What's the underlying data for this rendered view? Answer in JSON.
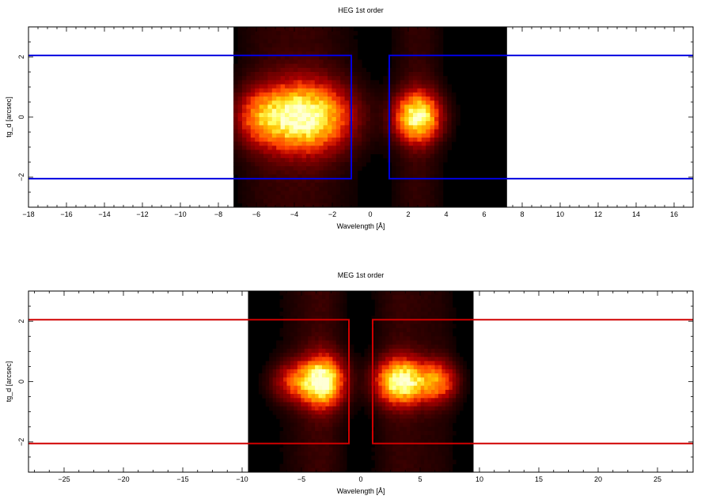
{
  "chart_data": [
    {
      "type": "heatmap",
      "title": "HEG 1st order",
      "xlabel": "Wavelength [Å]",
      "ylabel": "tg_d [arcsec]",
      "xlim": [
        -18,
        17
      ],
      "ylim": [
        -3,
        3
      ],
      "xticks": [
        -18,
        -16,
        -14,
        -12,
        -10,
        -8,
        -6,
        -4,
        -2,
        0,
        2,
        4,
        6,
        8,
        10,
        12,
        14,
        16
      ],
      "yticks": [
        -2,
        0,
        2
      ],
      "image_x_range": [
        -7.2,
        7.2
      ],
      "blobs": [
        {
          "x": -3.5,
          "y": 0,
          "sx": 1.6,
          "sy": 0.75,
          "amp": 1.0
        },
        {
          "x": -5.8,
          "y": 0,
          "sx": 0.9,
          "sy": 0.6,
          "amp": 0.35
        },
        {
          "x": 2.5,
          "y": 0,
          "sx": 0.8,
          "sy": 0.55,
          "amp": 0.95
        }
      ],
      "region_color": "#0000e0",
      "source_region": {
        "y": [
          -2.05,
          2.05
        ],
        "x_gap": [
          -1.0,
          1.0
        ]
      },
      "colormap": "heat"
    },
    {
      "type": "heatmap",
      "title": "MEG 1st order",
      "xlabel": "Wavelength [Å]",
      "ylabel": "tg_d [arcsec]",
      "xlim": [
        -28,
        28
      ],
      "ylim": [
        -3,
        3
      ],
      "xticks": [
        -25,
        -20,
        -15,
        -10,
        -5,
        0,
        5,
        10,
        15,
        20,
        25
      ],
      "yticks": [
        -2,
        0,
        2
      ],
      "image_x_range": [
        -9.5,
        9.5
      ],
      "blobs": [
        {
          "x": -3.2,
          "y": 0,
          "sx": 1.2,
          "sy": 0.55,
          "amp": 1.0
        },
        {
          "x": -5.6,
          "y": 0,
          "sx": 1.3,
          "sy": 0.45,
          "amp": 0.4
        },
        {
          "x": 3.4,
          "y": 0,
          "sx": 1.4,
          "sy": 0.5,
          "amp": 1.0
        },
        {
          "x": 6.5,
          "y": 0,
          "sx": 1.1,
          "sy": 0.45,
          "amp": 0.55
        }
      ],
      "region_color": "#d00000",
      "source_region": {
        "y": [
          -2.05,
          2.05
        ],
        "x_gap": [
          -1.0,
          1.0
        ]
      },
      "colormap": "heat"
    }
  ]
}
